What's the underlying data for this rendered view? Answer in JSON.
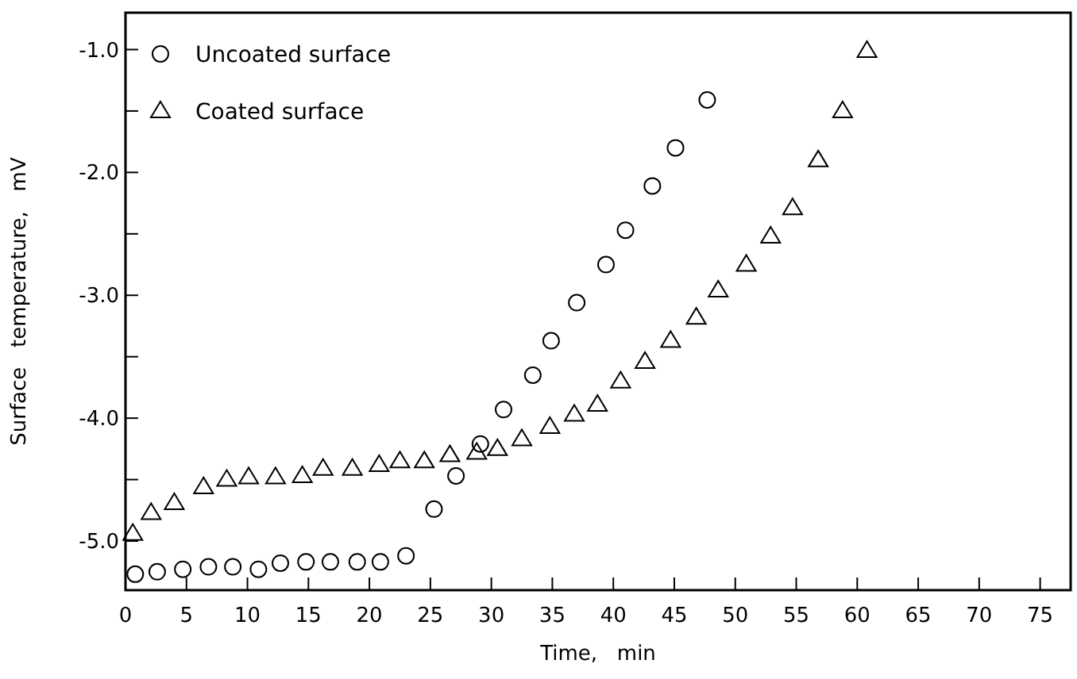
{
  "chart_data": {
    "type": "scatter",
    "xlabel": "Time,   min",
    "ylabel": "Surface   temperature,   mV",
    "xlim": [
      0,
      77.5
    ],
    "ylim": [
      -5.4,
      -0.7
    ],
    "xticks": [
      0,
      5,
      10,
      15,
      20,
      25,
      30,
      35,
      40,
      45,
      50,
      55,
      60,
      65,
      70,
      75
    ],
    "yticks": [
      {
        "value": -1,
        "label": "-1.0"
      },
      {
        "value": -1.5,
        "label": null
      },
      {
        "value": -2,
        "label": "-2.0"
      },
      {
        "value": -2.5,
        "label": null
      },
      {
        "value": -3,
        "label": "-3.0"
      },
      {
        "value": -3.5,
        "label": null
      },
      {
        "value": -4,
        "label": "-4.0"
      },
      {
        "value": -4.5,
        "label": null
      },
      {
        "value": -5,
        "label": "-5.0"
      }
    ],
    "grid": false,
    "legend": "top left",
    "series": [
      {
        "name": "Uncoated surface",
        "color": "#000000",
        "marker": "circle",
        "x": [
          0.8,
          2.6,
          4.7,
          6.8,
          8.8,
          10.9,
          12.7,
          14.8,
          16.8,
          19,
          20.9,
          23,
          25.3,
          27.1,
          29.1,
          31,
          33.4,
          34.9,
          37,
          39.4,
          41,
          43.2,
          45.1,
          47.7
        ],
        "values": [
          -5.27,
          -5.25,
          -5.23,
          -5.21,
          -5.21,
          -5.23,
          -5.18,
          -5.17,
          -5.17,
          -5.17,
          -5.17,
          -5.12,
          -4.74,
          -4.47,
          -4.21,
          -3.93,
          -3.65,
          -3.37,
          -3.06,
          -2.75,
          -2.47,
          -2.11,
          -1.8,
          -1.41
        ]
      },
      {
        "name": "Coated surface",
        "color": "#000000",
        "marker": "triangle",
        "x": [
          0.6,
          2.1,
          4,
          6.4,
          8.3,
          10.1,
          12.3,
          14.5,
          16.2,
          18.6,
          20.8,
          22.5,
          24.5,
          26.6,
          28.8,
          30.5,
          32.5,
          34.8,
          36.8,
          38.7,
          40.6,
          42.6,
          44.7,
          46.8,
          48.6,
          50.9,
          52.9,
          54.7,
          56.8,
          58.8,
          60.8
        ],
        "values": [
          -4.94,
          -4.77,
          -4.69,
          -4.56,
          -4.5,
          -4.48,
          -4.48,
          -4.47,
          -4.41,
          -4.41,
          -4.38,
          -4.35,
          -4.35,
          -4.3,
          -4.28,
          -4.25,
          -4.17,
          -4.07,
          -3.97,
          -3.89,
          -3.7,
          -3.54,
          -3.37,
          -3.18,
          -2.96,
          -2.75,
          -2.52,
          -2.29,
          -1.9,
          -1.5,
          -1.01
        ]
      }
    ]
  }
}
